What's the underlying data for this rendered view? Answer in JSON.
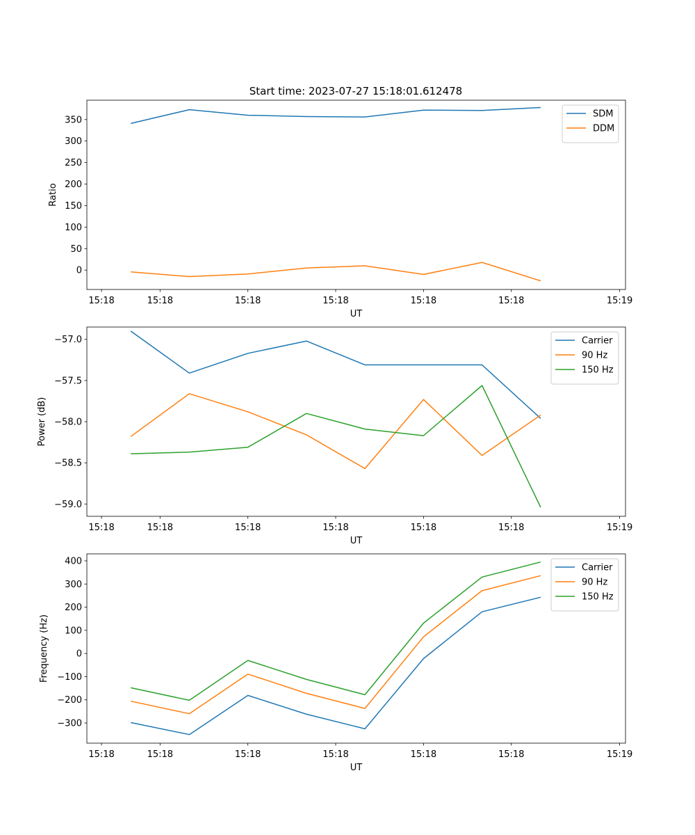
{
  "figure_title": "Start time: 2023-07-27 15:18:01.612478",
  "chart_data": [
    {
      "type": "line",
      "title": "Start time: 2023-07-27 15:18:01.612478",
      "xlabel": "UT",
      "ylabel": "Ratio",
      "x_tick_labels": [
        "15:18",
        "15:18",
        "15:18",
        "15:18",
        "15:18",
        "15:18",
        "15:19"
      ],
      "x": [
        0,
        1,
        2,
        3,
        4,
        5,
        6,
        7
      ],
      "xlim": [
        -0.75,
        8.45
      ],
      "ylim": [
        -45,
        395
      ],
      "yticks": [
        0,
        50,
        100,
        150,
        200,
        250,
        300,
        350
      ],
      "y_tick_labels": [
        "0",
        "50",
        "100",
        "150",
        "200",
        "250",
        "300",
        "350"
      ],
      "legend_position": "top-right",
      "series": [
        {
          "name": "SDM",
          "color": "#1f77b4",
          "values": [
            341,
            373,
            360,
            357,
            356,
            372,
            371,
            378
          ]
        },
        {
          "name": "DDM",
          "color": "#ff7f0e",
          "values": [
            -4,
            -15,
            -9,
            5,
            10,
            -10,
            18,
            -25
          ]
        }
      ]
    },
    {
      "type": "line",
      "xlabel": "UT",
      "ylabel": "Power (dB)",
      "x_tick_labels": [
        "15:18",
        "15:18",
        "15:18",
        "15:18",
        "15:18",
        "15:18",
        "15:19"
      ],
      "x": [
        0,
        1,
        2,
        3,
        4,
        5,
        6,
        7
      ],
      "xlim": [
        -0.75,
        8.45
      ],
      "ylim": [
        -59.15,
        -56.85
      ],
      "yticks": [
        -59.0,
        -58.5,
        -58.0,
        -57.5,
        -57.0
      ],
      "y_tick_labels": [
        "−59.0",
        "−58.5",
        "−58.0",
        "−57.5",
        "−57.0"
      ],
      "legend_position": "top-right",
      "series": [
        {
          "name": "Carrier",
          "color": "#1f77b4",
          "values": [
            -56.9,
            -57.41,
            -57.17,
            -57.02,
            -57.31,
            -57.31,
            -57.31,
            -57.96
          ]
        },
        {
          "name": "90 Hz",
          "color": "#ff7f0e",
          "values": [
            -58.18,
            -57.66,
            -57.88,
            -58.16,
            -58.57,
            -57.73,
            -58.41,
            -57.92
          ]
        },
        {
          "name": "150 Hz",
          "color": "#2ca02c",
          "values": [
            -58.39,
            -58.37,
            -58.31,
            -57.9,
            -58.09,
            -58.17,
            -57.56,
            -59.04
          ]
        }
      ]
    },
    {
      "type": "line",
      "xlabel": "UT",
      "ylabel": "Frequency (Hz)",
      "x_tick_labels": [
        "15:18",
        "15:18",
        "15:18",
        "15:18",
        "15:18",
        "15:18",
        "15:19"
      ],
      "x": [
        0,
        1,
        2,
        3,
        4,
        5,
        6,
        7
      ],
      "xlim": [
        -0.75,
        8.45
      ],
      "ylim": [
        -387,
        430
      ],
      "yticks": [
        -300,
        -200,
        -100,
        0,
        100,
        200,
        300,
        400
      ],
      "y_tick_labels": [
        "−300",
        "−200",
        "−100",
        "0",
        "100",
        "200",
        "300",
        "400"
      ],
      "legend_position": "top-right",
      "series": [
        {
          "name": "Carrier",
          "color": "#1f77b4",
          "values": [
            -298,
            -350,
            -181,
            -262,
            -325,
            -22,
            180,
            243
          ]
        },
        {
          "name": "90 Hz",
          "color": "#ff7f0e",
          "values": [
            -206,
            -260,
            -89,
            -172,
            -237,
            72,
            271,
            336
          ]
        },
        {
          "name": "150 Hz",
          "color": "#2ca02c",
          "values": [
            -148,
            -202,
            -30,
            -112,
            -178,
            131,
            330,
            395
          ]
        }
      ]
    }
  ]
}
